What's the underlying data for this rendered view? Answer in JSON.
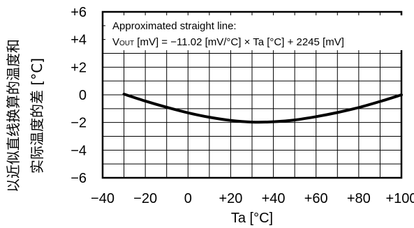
{
  "chart_data": {
    "type": "line",
    "title": "",
    "xlabel": "Ta [°C]",
    "ylabel_lines": [
      "以近似直线换算的温度和",
      "实际温度的差 [°C]"
    ],
    "xlim": [
      -40,
      100
    ],
    "ylim": [
      -6,
      6
    ],
    "x_ticks": [
      -40,
      -20,
      0,
      20,
      40,
      60,
      80,
      100
    ],
    "x_tick_labels": [
      "−40",
      "−20",
      "0",
      "+20",
      "+40",
      "+60",
      "+80",
      "+100"
    ],
    "y_ticks": [
      -6,
      -4,
      -2,
      0,
      2,
      4,
      6
    ],
    "y_tick_labels": [
      "−6",
      "−4",
      "−2",
      "0",
      "+2",
      "+4",
      "+6"
    ],
    "grid": true,
    "legend": null,
    "series": [
      {
        "x": [
          -30,
          -20,
          -10,
          0,
          10,
          20,
          30,
          40,
          50,
          60,
          70,
          80,
          90,
          100
        ],
        "y": [
          0.05,
          -0.45,
          -0.9,
          -1.3,
          -1.62,
          -1.85,
          -1.97,
          -1.95,
          -1.82,
          -1.58,
          -1.28,
          -0.92,
          -0.48,
          0.0
        ],
        "color": "#000000"
      }
    ],
    "annotation": {
      "line1": "Approximated straight line:",
      "vout_main": "V",
      "vout_sub": "OUT",
      "formula_rest": " [mV] = −11.02 [mV/°C] × Ta [°C] + 2245 [mV]"
    }
  }
}
